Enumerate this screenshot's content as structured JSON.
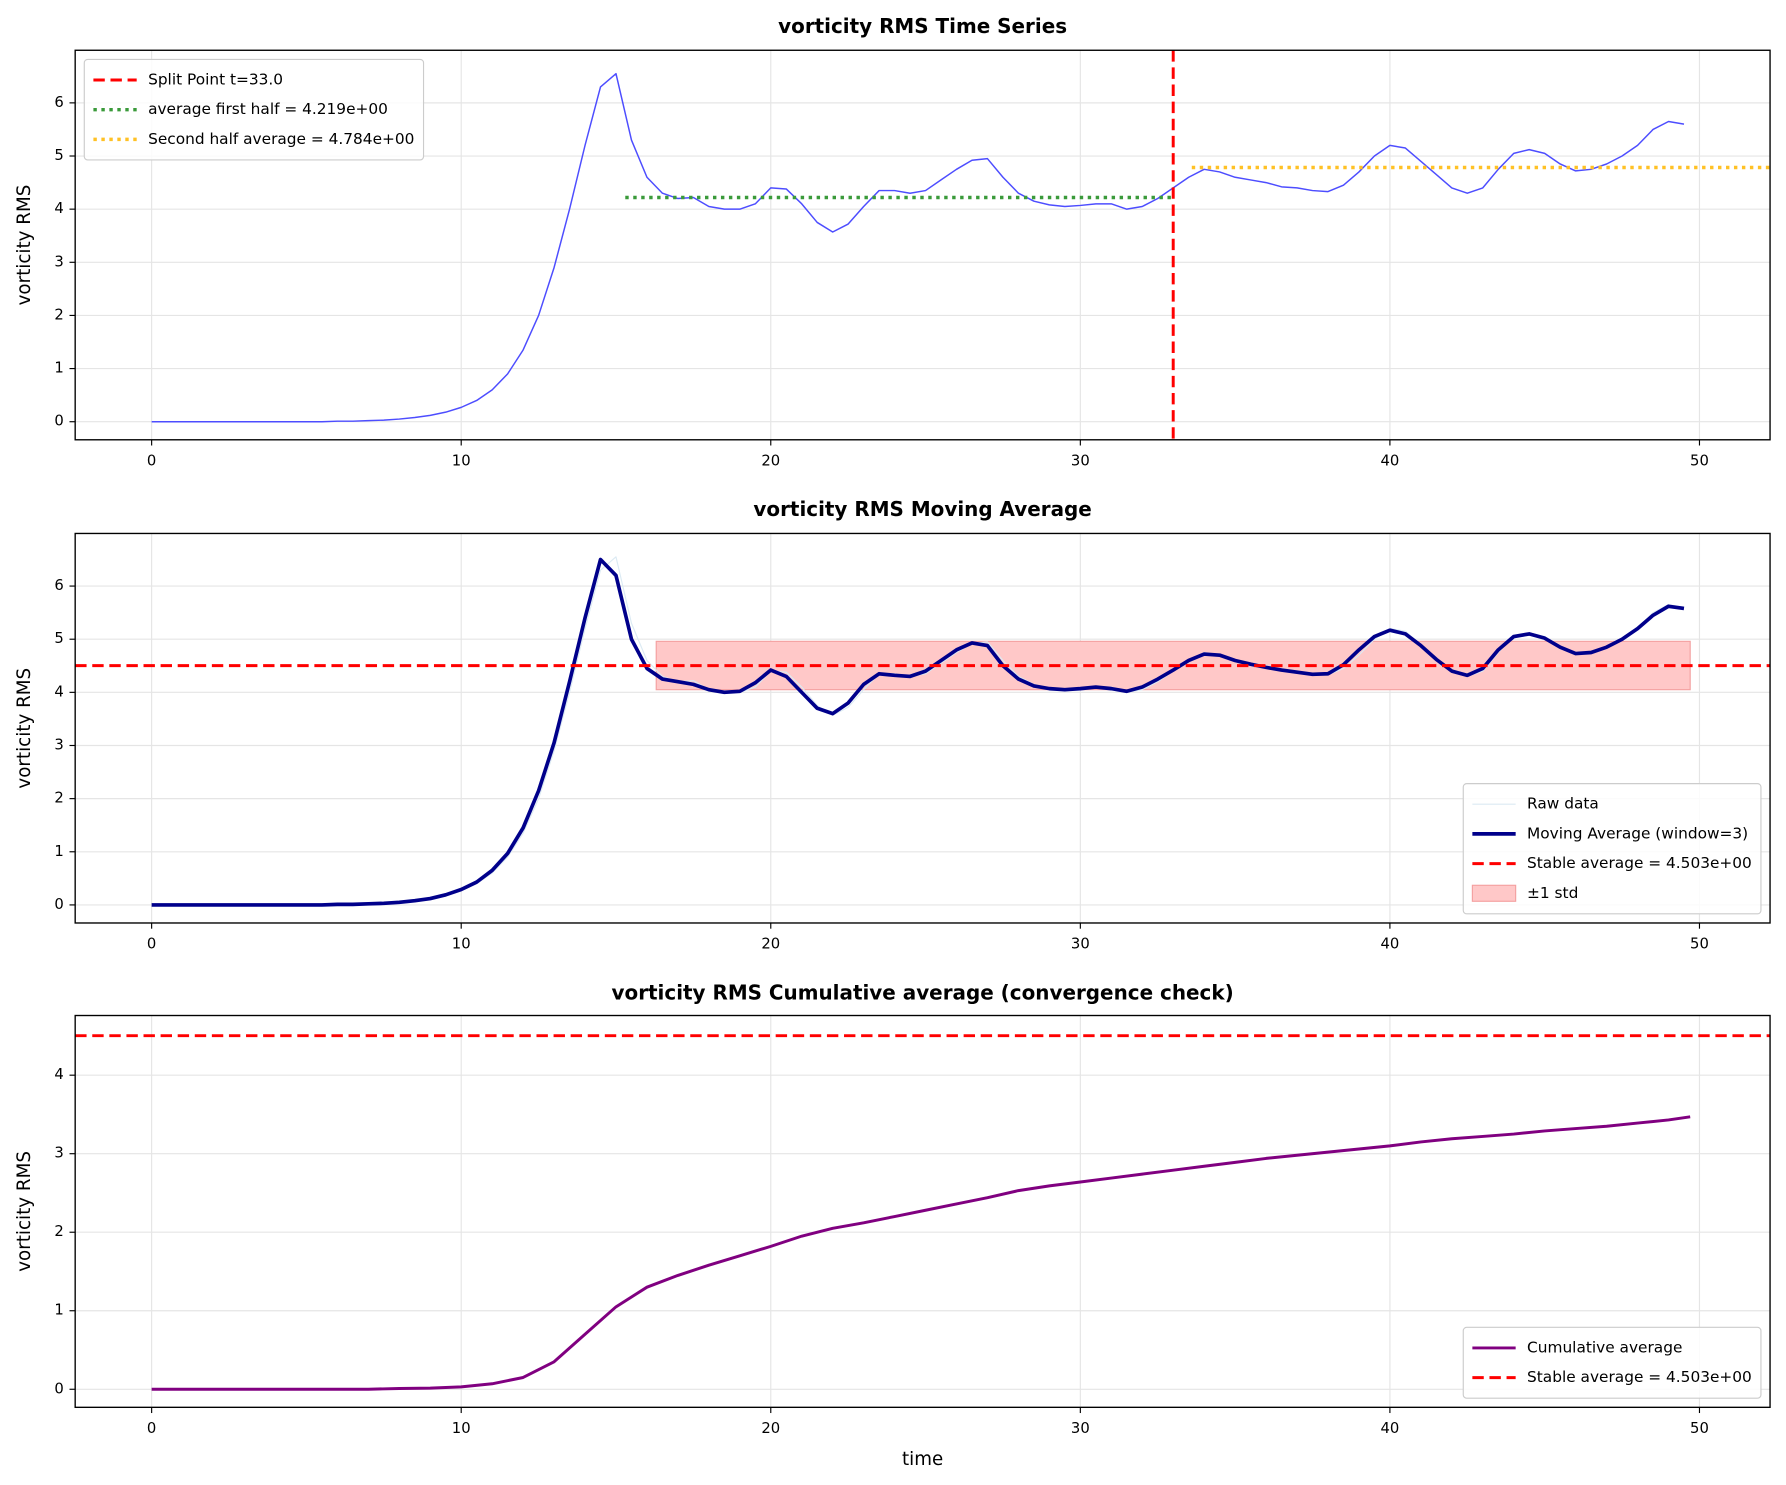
{
  "chart_data": [
    {
      "type": "line",
      "title": "vorticity RMS Time Series",
      "ylabel": "vorticity RMS",
      "xlim": [
        -2.47,
        52.28
      ],
      "ylim": [
        -0.34,
        6.99
      ],
      "xticks": [
        0,
        10,
        20,
        30,
        40,
        50
      ],
      "yticks": [
        0,
        1,
        2,
        3,
        4,
        5,
        6
      ],
      "grid": true,
      "legend": "upper left",
      "series": [
        {
          "color": "#4d4dff",
          "linewidth": 1.3,
          "x": [
            0,
            0.5,
            1,
            1.5,
            2,
            2.5,
            3,
            3.5,
            4,
            4.5,
            5,
            5.5,
            6,
            6.5,
            7,
            7.5,
            8,
            8.5,
            9,
            9.5,
            10,
            10.5,
            11,
            11.5,
            12,
            12.5,
            13,
            13.5,
            14,
            14.5,
            15,
            15.5,
            16,
            16.5,
            17,
            17.5,
            18,
            18.5,
            19,
            19.5,
            20,
            20.5,
            21,
            21.5,
            22,
            22.5,
            23,
            23.5,
            24,
            24.5,
            25,
            25.5,
            26,
            26.5,
            27,
            27.5,
            28,
            28.5,
            29,
            29.5,
            30,
            30.5,
            31,
            31.5,
            32,
            32.5,
            33,
            33.5,
            34,
            34.5,
            35,
            35.5,
            36,
            36.5,
            37,
            37.5,
            38,
            38.5,
            39,
            39.5,
            40,
            40.5,
            41,
            41.5,
            42,
            42.5,
            43,
            43.5,
            44,
            44.5,
            45,
            45.5,
            46,
            46.5,
            47,
            47.5,
            48,
            48.5,
            49,
            49.5
          ],
          "values": [
            0,
            0,
            0,
            0,
            0,
            0,
            0,
            0,
            0,
            0,
            0,
            0,
            0.01,
            0.01,
            0.02,
            0.03,
            0.05,
            0.08,
            0.12,
            0.18,
            0.27,
            0.4,
            0.6,
            0.9,
            1.35,
            2.0,
            2.9,
            4.0,
            5.2,
            6.3,
            6.55,
            5.3,
            4.6,
            4.3,
            4.2,
            4.22,
            4.05,
            4.0,
            4.0,
            4.1,
            4.4,
            4.38,
            4.1,
            3.75,
            3.57,
            3.72,
            4.05,
            4.35,
            4.35,
            4.3,
            4.35,
            4.55,
            4.75,
            4.92,
            4.95,
            4.6,
            4.3,
            4.15,
            4.08,
            4.05,
            4.07,
            4.1,
            4.1,
            4.0,
            4.05,
            4.2,
            4.4,
            4.6,
            4.75,
            4.7,
            4.6,
            4.55,
            4.5,
            4.42,
            4.4,
            4.35,
            4.33,
            4.45,
            4.7,
            5.0,
            5.2,
            5.15,
            4.9,
            4.65,
            4.4,
            4.3,
            4.4,
            4.75,
            5.05,
            5.12,
            5.05,
            4.85,
            4.72,
            4.75,
            4.85,
            5.0,
            5.2,
            5.5,
            5.65,
            5.6
          ]
        }
      ],
      "reference_lines": [
        {
          "name": "Split Point t=33.0",
          "orientation": "vertical",
          "value": 33.0,
          "color": "#ff0000",
          "style": "dashed"
        },
        {
          "name": "average first half = 4.219e+00",
          "orientation": "horizontal",
          "value": 4.219,
          "x": [
            15.3,
            33.0
          ],
          "color": "#3a9a3a",
          "style": "dotted"
        },
        {
          "name": "Second half average = 4.784e+00",
          "orientation": "horizontal",
          "value": 4.784,
          "x": [
            33.6,
            52.28
          ],
          "color": "#ffc125",
          "style": "dotted"
        }
      ]
    },
    {
      "type": "line",
      "title": "vorticity RMS Moving Average",
      "ylabel": "vorticity RMS",
      "xlim": [
        -2.47,
        52.28
      ],
      "ylim": [
        -0.34,
        6.99
      ],
      "xticks": [
        0,
        10,
        20,
        30,
        40,
        50
      ],
      "yticks": [
        0,
        1,
        2,
        3,
        4,
        5,
        6
      ],
      "grid": true,
      "legend": "lower right",
      "series": [
        {
          "name": "Raw data",
          "color": "#dbeaf3",
          "linewidth": 1,
          "x": [
            0,
            0.5,
            1,
            1.5,
            2,
            2.5,
            3,
            3.5,
            4,
            4.5,
            5,
            5.5,
            6,
            6.5,
            7,
            7.5,
            8,
            8.5,
            9,
            9.5,
            10,
            10.5,
            11,
            11.5,
            12,
            12.5,
            13,
            13.5,
            14,
            14.5,
            15,
            15.5,
            16,
            16.5,
            17,
            17.5,
            18,
            18.5,
            19,
            19.5,
            20,
            20.5,
            21,
            21.5,
            22,
            22.5,
            23,
            23.5,
            24,
            24.5,
            25,
            25.5,
            26,
            26.5,
            27,
            27.5,
            28,
            28.5,
            29,
            29.5,
            30,
            30.5,
            31,
            31.5,
            32,
            32.5,
            33,
            33.5,
            34,
            34.5,
            35,
            35.5,
            36,
            36.5,
            37,
            37.5,
            38,
            38.5,
            39,
            39.5,
            40,
            40.5,
            41,
            41.5,
            42,
            42.5,
            43,
            43.5,
            44,
            44.5,
            45,
            45.5,
            46,
            46.5,
            47,
            47.5,
            48,
            48.5,
            49,
            49.5
          ],
          "values": [
            0,
            0,
            0,
            0,
            0,
            0,
            0,
            0,
            0,
            0,
            0,
            0,
            0.01,
            0.01,
            0.02,
            0.03,
            0.05,
            0.08,
            0.12,
            0.18,
            0.27,
            0.4,
            0.6,
            0.9,
            1.35,
            2.0,
            2.9,
            4.0,
            5.2,
            6.3,
            6.55,
            5.3,
            4.6,
            4.3,
            4.2,
            4.22,
            4.05,
            4.0,
            4.0,
            4.1,
            4.4,
            4.38,
            4.1,
            3.75,
            3.57,
            3.72,
            4.05,
            4.35,
            4.35,
            4.3,
            4.35,
            4.55,
            4.75,
            4.92,
            4.95,
            4.6,
            4.3,
            4.15,
            4.08,
            4.05,
            4.07,
            4.1,
            4.1,
            4.0,
            4.05,
            4.2,
            4.4,
            4.6,
            4.75,
            4.7,
            4.6,
            4.55,
            4.5,
            4.42,
            4.4,
            4.35,
            4.33,
            4.45,
            4.7,
            5.0,
            5.2,
            5.15,
            4.9,
            4.65,
            4.4,
            4.3,
            4.4,
            4.75,
            5.05,
            5.12,
            5.05,
            4.85,
            4.72,
            4.75,
            4.85,
            5.0,
            5.2,
            5.5,
            5.65,
            5.6
          ]
        },
        {
          "name": "Moving Average  (window=3)",
          "color": "#00008b",
          "linewidth": 3.2,
          "x": [
            0,
            0.5,
            1,
            1.5,
            2,
            2.5,
            3,
            3.5,
            4,
            4.5,
            5,
            5.5,
            6,
            6.5,
            7,
            7.5,
            8,
            8.5,
            9,
            9.5,
            10,
            10.5,
            11,
            11.5,
            12,
            12.5,
            13,
            13.5,
            14,
            14.5,
            15,
            15.5,
            16,
            16.5,
            17,
            17.5,
            18,
            18.5,
            19,
            19.5,
            20,
            20.5,
            21,
            21.5,
            22,
            22.5,
            23,
            23.5,
            24,
            24.5,
            25,
            25.5,
            26,
            26.5,
            27,
            27.5,
            28,
            28.5,
            29,
            29.5,
            30,
            30.5,
            31,
            31.5,
            32,
            32.5,
            33,
            33.5,
            34,
            34.5,
            35,
            35.5,
            36,
            36.5,
            37,
            37.5,
            38,
            38.5,
            39,
            39.5,
            40,
            40.5,
            41,
            41.5,
            42,
            42.5,
            43,
            43.5,
            44,
            44.5,
            45,
            45.5,
            46,
            46.5,
            47,
            47.5,
            48,
            48.5,
            49,
            49.5
          ],
          "values": [
            0,
            0,
            0,
            0,
            0,
            0,
            0,
            0,
            0,
            0,
            0,
            0,
            0.01,
            0.01,
            0.02,
            0.03,
            0.05,
            0.08,
            0.12,
            0.19,
            0.29,
            0.43,
            0.65,
            0.97,
            1.45,
            2.15,
            3.05,
            4.2,
            5.4,
            6.5,
            6.2,
            5.0,
            4.45,
            4.25,
            4.2,
            4.15,
            4.05,
            4.0,
            4.02,
            4.18,
            4.42,
            4.3,
            4.0,
            3.7,
            3.6,
            3.8,
            4.15,
            4.35,
            4.32,
            4.3,
            4.4,
            4.6,
            4.8,
            4.93,
            4.88,
            4.5,
            4.25,
            4.12,
            4.07,
            4.05,
            4.07,
            4.1,
            4.07,
            4.02,
            4.1,
            4.25,
            4.42,
            4.6,
            4.72,
            4.7,
            4.6,
            4.53,
            4.47,
            4.42,
            4.38,
            4.34,
            4.35,
            4.52,
            4.8,
            5.05,
            5.17,
            5.1,
            4.88,
            4.62,
            4.4,
            4.32,
            4.45,
            4.8,
            5.05,
            5.1,
            5.02,
            4.85,
            4.73,
            4.75,
            4.85,
            5.0,
            5.2,
            5.45,
            5.62,
            5.58
          ]
        }
      ],
      "reference_lines": [
        {
          "name": "Stable average = 4.503e+00",
          "orientation": "horizontal",
          "value": 4.503,
          "color": "#ff0000",
          "style": "dashed"
        }
      ],
      "band": {
        "name": "±1 std",
        "x": [
          16.3,
          49.7
        ],
        "lower": 4.05,
        "upper": 4.96,
        "color": "#ffc8c8"
      }
    },
    {
      "type": "line",
      "title": "vorticity RMS Cumulative average (convergence check)",
      "ylabel": "vorticity RMS",
      "xlabel": "time",
      "xlim": [
        -2.47,
        52.28
      ],
      "ylim": [
        -0.23,
        4.76
      ],
      "xticks": [
        0,
        10,
        20,
        30,
        40,
        50
      ],
      "yticks": [
        0,
        1,
        2,
        3,
        4
      ],
      "grid": true,
      "legend": "lower right",
      "series": [
        {
          "name": "Cumulative average",
          "color": "#800080",
          "linewidth": 2.6,
          "x": [
            0,
            1,
            2,
            3,
            4,
            5,
            6,
            7,
            8,
            9,
            10,
            11,
            12,
            13,
            14,
            15,
            16,
            17,
            18,
            19,
            20,
            21,
            22,
            23,
            24,
            25,
            26,
            27,
            28,
            29,
            30,
            31,
            32,
            33,
            34,
            35,
            36,
            37,
            38,
            39,
            40,
            41,
            42,
            43,
            44,
            45,
            46,
            47,
            48,
            49,
            49.7
          ],
          "values": [
            0,
            0,
            0,
            0,
            0,
            0,
            0,
            0,
            0.01,
            0.015,
            0.03,
            0.07,
            0.15,
            0.35,
            0.7,
            1.05,
            1.3,
            1.45,
            1.58,
            1.7,
            1.82,
            1.95,
            2.05,
            2.12,
            2.2,
            2.28,
            2.36,
            2.44,
            2.53,
            2.59,
            2.64,
            2.69,
            2.74,
            2.79,
            2.84,
            2.89,
            2.94,
            2.98,
            3.02,
            3.06,
            3.1,
            3.15,
            3.19,
            3.22,
            3.25,
            3.29,
            3.32,
            3.35,
            3.39,
            3.43,
            3.47
          ]
        }
      ],
      "reference_lines": [
        {
          "name": "Stable average = 4.503e+00",
          "orientation": "horizontal",
          "value": 4.503,
          "color": "#ff0000",
          "style": "dashed"
        }
      ]
    }
  ]
}
